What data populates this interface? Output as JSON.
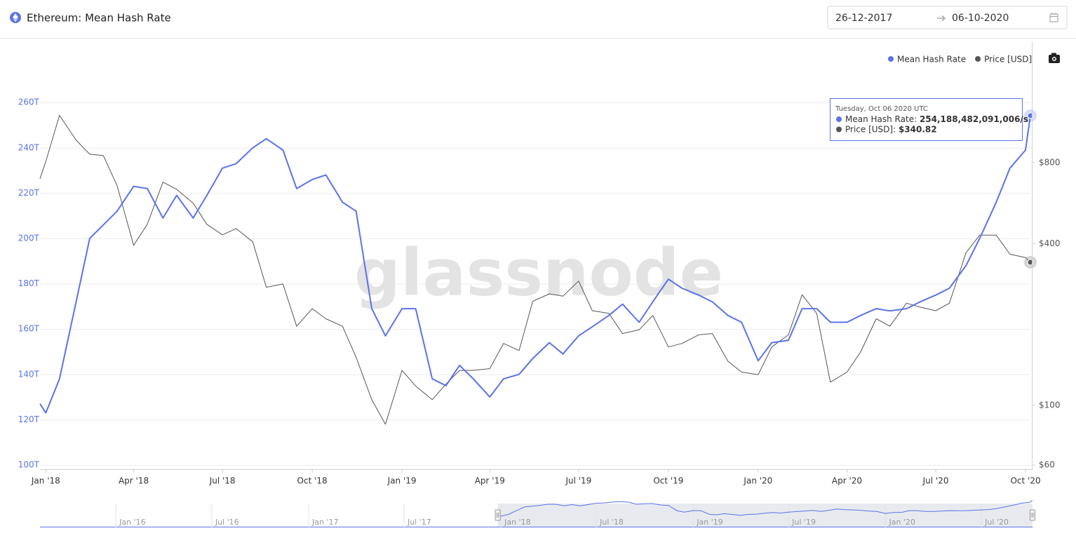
{
  "header": {
    "title": "Ethereum: Mean Hash Rate",
    "date_from": "26-12-2017",
    "date_to": "06-10-2020"
  },
  "chart_data": {
    "type": "line",
    "log_y2": true,
    "grid": true,
    "legend": "top-right",
    "watermark": "glassnode",
    "xlim": [
      "2017-12-26",
      "2020-10-06"
    ],
    "xticks": [
      {
        "value": "2018-01-01",
        "label": "Jan '18"
      },
      {
        "value": "2018-04-01",
        "label": "Apr '18"
      },
      {
        "value": "2018-07-01",
        "label": "Jul '18"
      },
      {
        "value": "2018-10-01",
        "label": "Oct '18"
      },
      {
        "value": "2019-01-01",
        "label": "Jan '19"
      },
      {
        "value": "2019-04-01",
        "label": "Apr '19"
      },
      {
        "value": "2019-07-01",
        "label": "Jul '19"
      },
      {
        "value": "2019-10-01",
        "label": "Oct '19"
      },
      {
        "value": "2020-01-01",
        "label": "Jan '20"
      },
      {
        "value": "2020-04-01",
        "label": "Apr '20"
      },
      {
        "value": "2020-07-01",
        "label": "Jul '20"
      },
      {
        "value": "2020-10-01",
        "label": "Oct '20"
      }
    ],
    "ylim": [
      100,
      278
    ],
    "yticks": [
      {
        "value": 100,
        "label": "100T"
      },
      {
        "value": 120,
        "label": "120T"
      },
      {
        "value": 140,
        "label": "140T"
      },
      {
        "value": 160,
        "label": "160T"
      },
      {
        "value": 180,
        "label": "180T"
      },
      {
        "value": 200,
        "label": "200T"
      },
      {
        "value": 220,
        "label": "220T"
      },
      {
        "value": 240,
        "label": "240T"
      },
      {
        "value": 260,
        "label": "260T"
      }
    ],
    "y2lim": [
      60,
      1900
    ],
    "y2ticks": [
      {
        "value": 60,
        "label": "$60"
      },
      {
        "value": 100,
        "label": "$100"
      },
      {
        "value": 400,
        "label": "$400"
      },
      {
        "value": 800,
        "label": "$800"
      }
    ],
    "x": [
      "2017-12-26",
      "2018-01-01",
      "2018-01-15",
      "2018-02-01",
      "2018-02-15",
      "2018-03-01",
      "2018-03-15",
      "2018-04-01",
      "2018-04-15",
      "2018-05-01",
      "2018-05-15",
      "2018-06-01",
      "2018-06-15",
      "2018-07-01",
      "2018-07-15",
      "2018-08-01",
      "2018-08-15",
      "2018-09-01",
      "2018-09-15",
      "2018-10-01",
      "2018-10-15",
      "2018-11-01",
      "2018-11-15",
      "2018-12-01",
      "2018-12-15",
      "2019-01-01",
      "2019-01-15",
      "2019-02-01",
      "2019-02-15",
      "2019-03-01",
      "2019-03-15",
      "2019-04-01",
      "2019-04-15",
      "2019-05-01",
      "2019-05-15",
      "2019-06-01",
      "2019-06-15",
      "2019-07-01",
      "2019-07-15",
      "2019-08-01",
      "2019-08-15",
      "2019-09-01",
      "2019-09-15",
      "2019-10-01",
      "2019-10-15",
      "2019-11-01",
      "2019-11-15",
      "2019-12-01",
      "2019-12-15",
      "2020-01-01",
      "2020-01-15",
      "2020-02-01",
      "2020-02-15",
      "2020-03-01",
      "2020-03-15",
      "2020-04-01",
      "2020-04-15",
      "2020-05-01",
      "2020-05-15",
      "2020-06-01",
      "2020-06-15",
      "2020-07-01",
      "2020-07-15",
      "2020-08-01",
      "2020-08-15",
      "2020-09-01",
      "2020-09-15",
      "2020-10-01",
      "2020-10-06"
    ],
    "series": [
      {
        "name": "Mean Hash Rate",
        "color": "#5b73e8",
        "axis": "y",
        "values": [
          127,
          123,
          138,
          172,
          200,
          206,
          212,
          223,
          222,
          209,
          219,
          209,
          219,
          231,
          233,
          240,
          244,
          239,
          222,
          226,
          228,
          216,
          212,
          169,
          157,
          169,
          169,
          138,
          135,
          144,
          138,
          130,
          138,
          140,
          147,
          154,
          149,
          157,
          161,
          166,
          171,
          163,
          172,
          182,
          178,
          175,
          172,
          166,
          163,
          146,
          154,
          155,
          169,
          169,
          163,
          163,
          166,
          169,
          168,
          169,
          172,
          175,
          178,
          188,
          200,
          216,
          231,
          239,
          254.188482091006
        ]
      },
      {
        "name": "Price [USD]",
        "color": "#555555",
        "axis": "y2",
        "values": [
          697,
          809,
          1200,
          970,
          860,
          850,
          657,
          394,
          472,
          677,
          637,
          565,
          472,
          431,
          455,
          406,
          275,
          283,
          197,
          229,
          210,
          197,
          151,
          105,
          85,
          135,
          118,
          105,
          120,
          135,
          135,
          137,
          170,
          160,
          244,
          260,
          255,
          290,
          225,
          220,
          185,
          191,
          216,
          165,
          170,
          183,
          185,
          146,
          133,
          130,
          165,
          183,
          258,
          220,
          122,
          133,
          158,
          210,
          197,
          240,
          232,
          225,
          240,
          370,
          430,
          430,
          365,
          355,
          340.82
        ]
      }
    ],
    "tooltip": {
      "date": "Tuesday, Oct 06 2020 UTC",
      "items": [
        {
          "value": 254.188482091006,
          "label": "254,188,482,091,006/s"
        },
        {
          "value": 340.82,
          "label": "$340.82"
        }
      ]
    },
    "navigator": {
      "xlim": [
        "2015-08-10",
        "2020-10-06"
      ],
      "xticks": [
        {
          "value": "2016-01-01",
          "label": "Jan '16"
        },
        {
          "value": "2016-07-01",
          "label": "Jul '16"
        },
        {
          "value": "2017-01-01",
          "label": "Jan '17"
        },
        {
          "value": "2017-07-01",
          "label": "Jul '17"
        },
        {
          "value": "2018-01-01",
          "label": "Jan '18"
        },
        {
          "value": "2018-07-01",
          "label": "Jul '18"
        },
        {
          "value": "2019-01-01",
          "label": "Jan '19"
        },
        {
          "value": "2019-07-01",
          "label": "Jul '19"
        },
        {
          "value": "2020-01-01",
          "label": "Jan '20"
        },
        {
          "value": "2020-07-01",
          "label": "Jul '20"
        }
      ]
    }
  }
}
